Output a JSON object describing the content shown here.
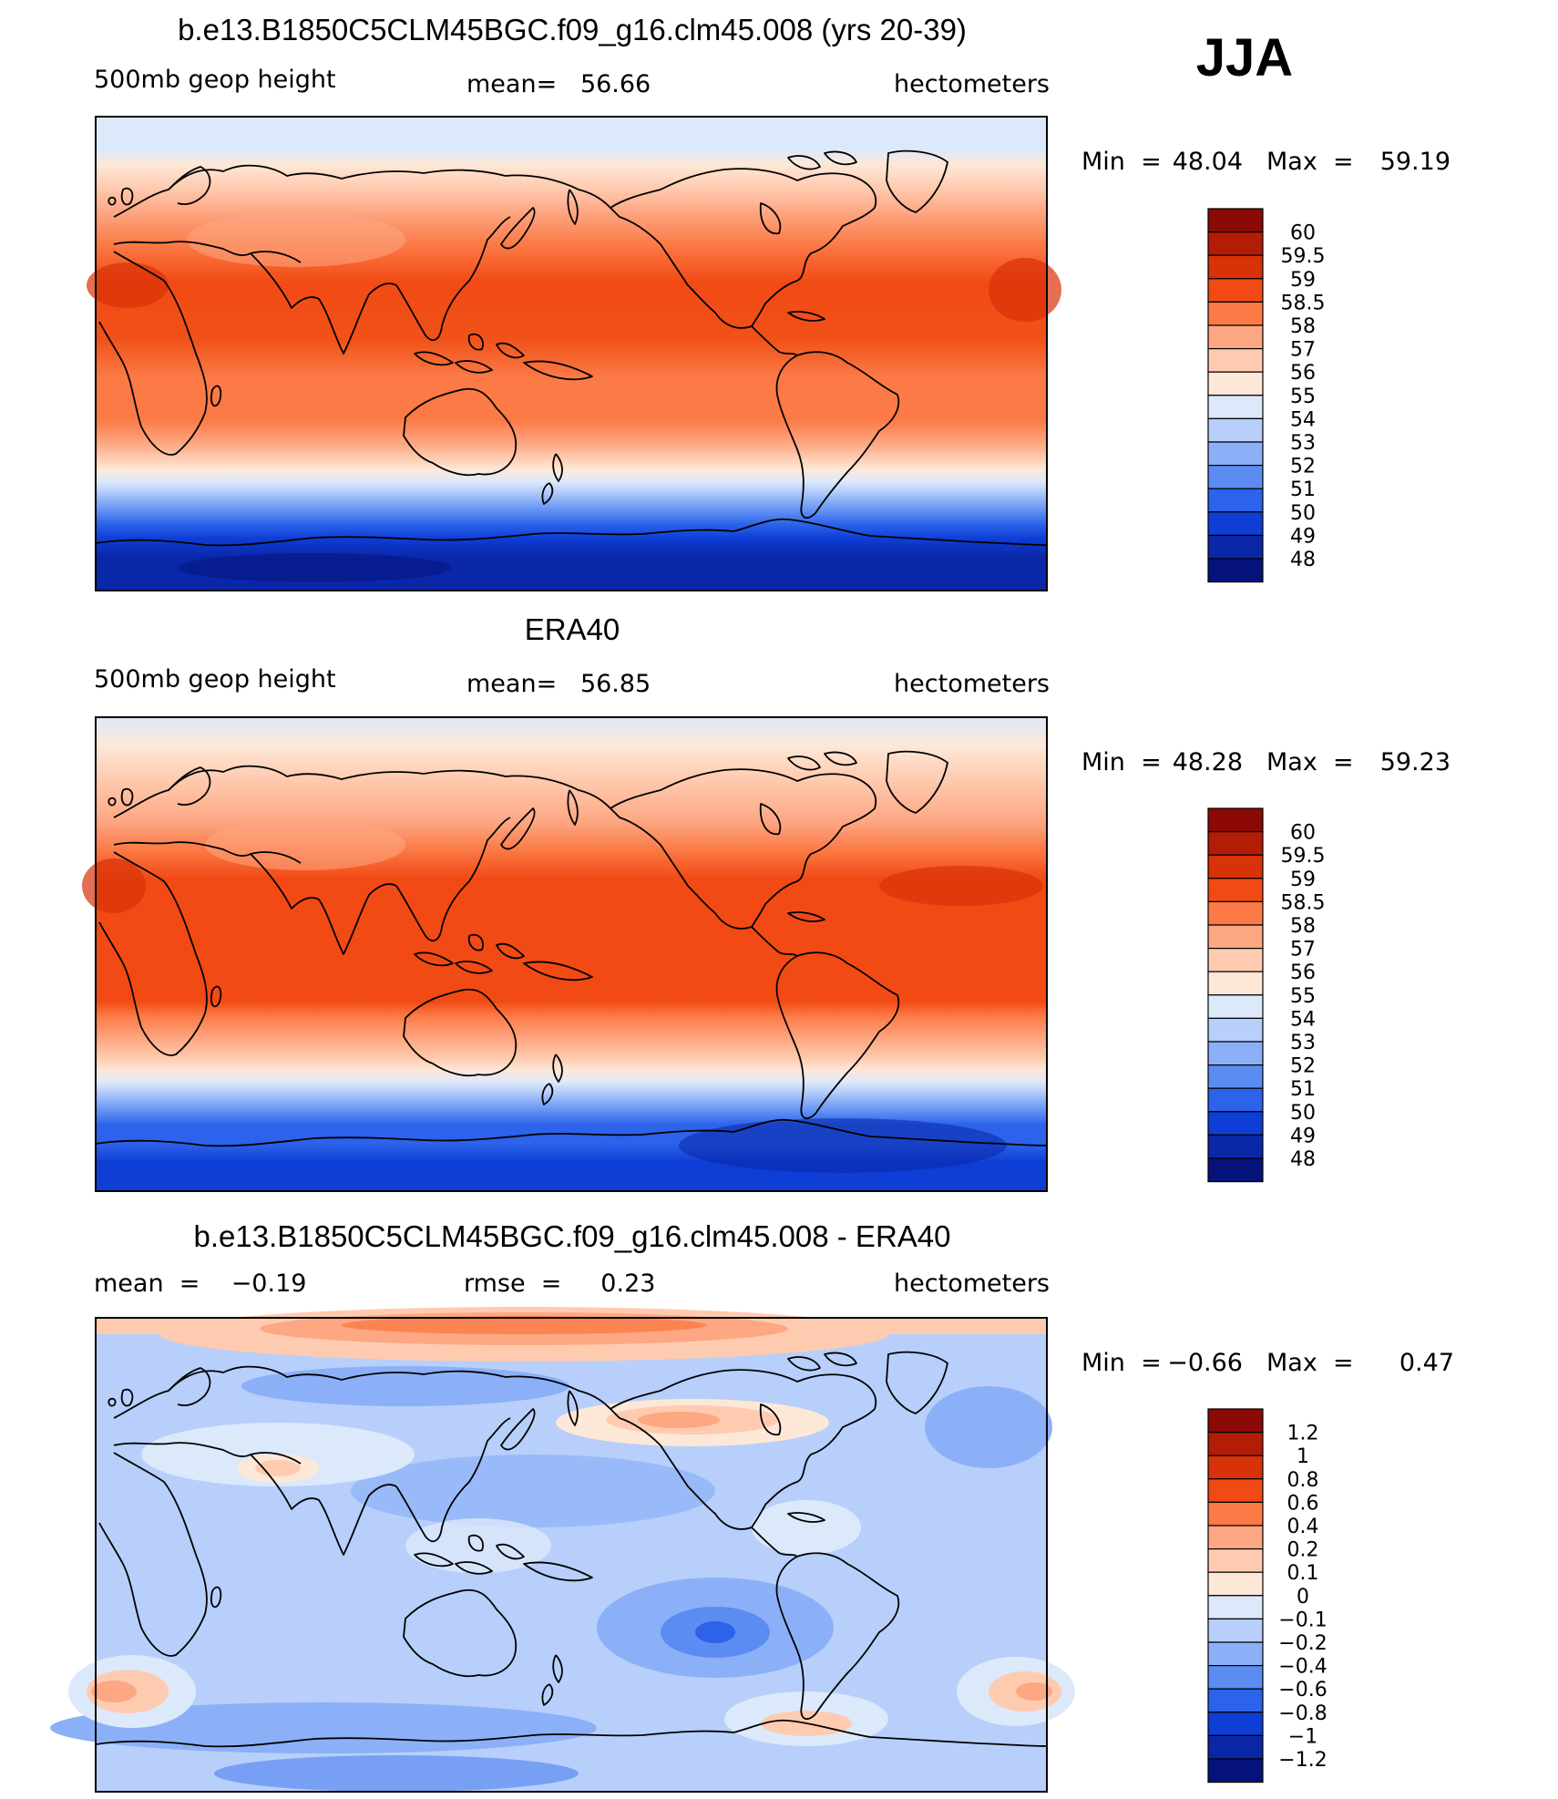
{
  "season": "JJA",
  "panels": [
    {
      "title": "b.e13.B1850C5CLM45BGC.f09_g16.clm45.008 (yrs 20-39)",
      "left": "500mb geop height",
      "center": "mean=   56.66",
      "right": "hectometers",
      "min_label": "Min  =",
      "min_value": "48.04",
      "max_label": "Max  =",
      "max_value": "59.19",
      "levels": [
        "60",
        "59.5",
        "59",
        "58.5",
        "58",
        "57",
        "56",
        "55",
        "54",
        "53",
        "52",
        "51",
        "50",
        "49",
        "48"
      ],
      "colors": [
        "#8b0a07",
        "#b31c06",
        "#d83208",
        "#f24a15",
        "#fb7a46",
        "#fda783",
        "#fecbb0",
        "#fde8d8",
        "#dce9fb",
        "#b7cffa",
        "#8bb0f7",
        "#5b8cf2",
        "#2c63ea",
        "#0e3ed6",
        "#0a27a8",
        "#05127a"
      ]
    },
    {
      "title": "ERA40",
      "left": "500mb geop height",
      "center": "mean=   56.85",
      "right": "hectometers",
      "min_label": "Min  =",
      "min_value": "48.28",
      "max_label": "Max  =",
      "max_value": "59.23",
      "levels": [
        "60",
        "59.5",
        "59",
        "58.5",
        "58",
        "57",
        "56",
        "55",
        "54",
        "53",
        "52",
        "51",
        "50",
        "49",
        "48"
      ],
      "colors": [
        "#8b0a07",
        "#b31c06",
        "#d83208",
        "#f24a15",
        "#fb7a46",
        "#fda783",
        "#fecbb0",
        "#fde8d8",
        "#dce9fb",
        "#b7cffa",
        "#8bb0f7",
        "#5b8cf2",
        "#2c63ea",
        "#0e3ed6",
        "#0a27a8",
        "#05127a"
      ]
    },
    {
      "title": "b.e13.B1850C5CLM45BGC.f09_g16.clm45.008 - ERA40",
      "left": "mean  =    −0.19",
      "center": "rmse  =     0.23",
      "right": "hectometers",
      "min_label": "Min  =",
      "min_value": "−0.66",
      "max_label": "Max  =",
      "max_value": "0.47",
      "levels": [
        "1.2",
        "1",
        "0.8",
        "0.6",
        "0.4",
        "0.2",
        "0.1",
        "0",
        "−0.1",
        "−0.2",
        "−0.4",
        "−0.6",
        "−0.8",
        "−1",
        "−1.2"
      ],
      "colors": [
        "#8b0a07",
        "#b31c06",
        "#d83208",
        "#f24a15",
        "#fb7a46",
        "#fda783",
        "#fecbb0",
        "#fde8d8",
        "#dce9fb",
        "#b7cffa",
        "#8bb0f7",
        "#5b8cf2",
        "#2c63ea",
        "#0e3ed6",
        "#0a27a8",
        "#05127a"
      ]
    }
  ]
}
